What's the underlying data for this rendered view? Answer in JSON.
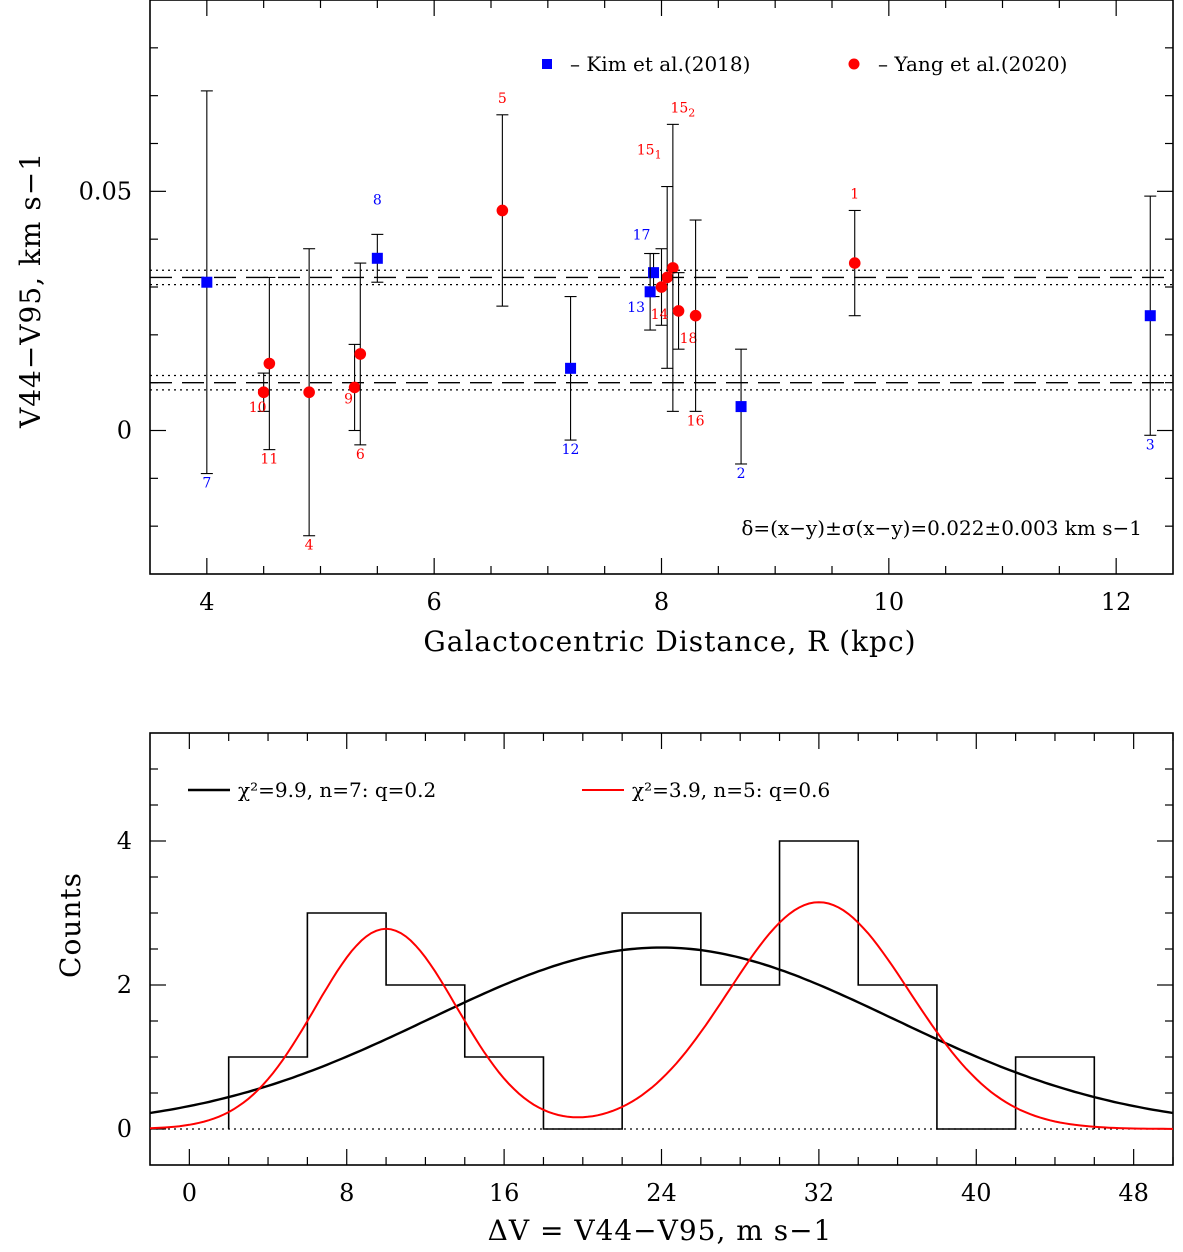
{
  "chart_data": [
    {
      "type": "scatter",
      "ylabel": "V44−V95, km s−1",
      "xlabel": "Galactocentric Distance, R (kpc)",
      "xlim": [
        3.5,
        12.5
      ],
      "ylim": [
        -0.03,
        0.09
      ],
      "xticks": [
        4,
        6,
        8,
        10,
        12
      ],
      "yticks": [
        0,
        0.05
      ],
      "ytick_labels": [
        "0",
        "0.05"
      ],
      "grid": false,
      "legend": "top-right",
      "colors": {
        "kim": "#0000ff",
        "yang": "#ff0000",
        "errorbar": "#000000"
      },
      "series": [
        {
          "name": "– Kim et al.(2018)",
          "marker": "square",
          "points": [
            {
              "label": "7",
              "x": 4.0,
              "y": 0.031,
              "lo": -0.009,
              "hi": 0.071
            },
            {
              "label": "8",
              "x": 5.5,
              "y": 0.036,
              "lo": 0.031,
              "hi": 0.041
            },
            {
              "label": "12",
              "x": 7.2,
              "y": 0.013,
              "lo": -0.002,
              "hi": 0.028
            },
            {
              "label": "17",
              "x": 7.93,
              "y": 0.033,
              "lo": 0.028,
              "hi": 0.037
            },
            {
              "label": "13",
              "x": 7.9,
              "y": 0.029,
              "lo": 0.021,
              "hi": 0.037
            },
            {
              "label": "2",
              "x": 8.7,
              "y": 0.005,
              "lo": -0.007,
              "hi": 0.017
            },
            {
              "label": "3",
              "x": 12.3,
              "y": 0.024,
              "lo": -0.001,
              "hi": 0.049
            }
          ]
        },
        {
          "name": "– Yang et al.(2020)",
          "marker": "circle",
          "points": [
            {
              "label": "10",
              "x": 4.5,
              "y": 0.008,
              "lo": 0.004,
              "hi": 0.012
            },
            {
              "label": "11",
              "x": 4.55,
              "y": 0.014,
              "lo": -0.004,
              "hi": 0.032
            },
            {
              "label": "4",
              "x": 4.9,
              "y": 0.008,
              "lo": -0.022,
              "hi": 0.038
            },
            {
              "label": "9",
              "x": 5.3,
              "y": 0.009,
              "lo": 0.0,
              "hi": 0.018
            },
            {
              "label": "6",
              "x": 5.35,
              "y": 0.016,
              "lo": -0.003,
              "hi": 0.035
            },
            {
              "label": "5",
              "x": 6.6,
              "y": 0.046,
              "lo": 0.026,
              "hi": 0.066
            },
            {
              "label": "151",
              "x": 8.05,
              "y": 0.032,
              "lo": 0.013,
              "hi": 0.051
            },
            {
              "label": "152",
              "x": 8.1,
              "y": 0.034,
              "lo": 0.004,
              "hi": 0.064
            },
            {
              "label": "14",
              "x": 8.0,
              "y": 0.03,
              "lo": 0.022,
              "hi": 0.038
            },
            {
              "label": "18",
              "x": 8.15,
              "y": 0.025,
              "lo": 0.017,
              "hi": 0.033
            },
            {
              "label": "16",
              "x": 8.3,
              "y": 0.024,
              "lo": 0.004,
              "hi": 0.044
            },
            {
              "label": "1",
              "x": 9.7,
              "y": 0.035,
              "lo": 0.024,
              "hi": 0.046
            }
          ]
        }
      ],
      "reference_lines": [
        {
          "y": 0.032,
          "band": [
            0.0305,
            0.0335
          ]
        },
        {
          "y": 0.01,
          "band": [
            0.0085,
            0.0115
          ]
        }
      ],
      "annotation": "δ=(x−y)±σ(x−y)=0.022±0.003 km s−1"
    },
    {
      "type": "histogram",
      "ylabel": "Counts",
      "xlabel": "ΔV = V44−V95, m s−1",
      "xlim": [
        -2,
        50
      ],
      "ylim": [
        -0.5,
        5.5
      ],
      "xticks": [
        0,
        8,
        16,
        24,
        32,
        40,
        48
      ],
      "yticks": [
        0,
        2,
        4
      ],
      "grid": false,
      "legend": "top",
      "bins": [
        {
          "x0": 2,
          "x1": 6,
          "count": 1
        },
        {
          "x0": 6,
          "x1": 10,
          "count": 3
        },
        {
          "x0": 10,
          "x1": 14,
          "count": 2
        },
        {
          "x0": 14,
          "x1": 18,
          "count": 1
        },
        {
          "x0": 18,
          "x1": 22,
          "count": 0
        },
        {
          "x0": 22,
          "x1": 26,
          "count": 3
        },
        {
          "x0": 26,
          "x1": 30,
          "count": 2
        },
        {
          "x0": 30,
          "x1": 34,
          "count": 4
        },
        {
          "x0": 34,
          "x1": 38,
          "count": 2
        },
        {
          "x0": 38,
          "x1": 42,
          "count": 0
        },
        {
          "x0": 42,
          "x1": 46,
          "count": 1
        }
      ],
      "fits": [
        {
          "name": "χ²=9.9, n=7: q=0.2",
          "color": "#000000",
          "components": [
            {
              "amp": 2.52,
              "mu": 24,
              "sigma": 11.8
            }
          ]
        },
        {
          "name": "χ²=3.9, n=5: q=0.6",
          "color": "#ff0000",
          "components": [
            {
              "amp": 2.78,
              "mu": 10,
              "sigma": 3.6
            },
            {
              "amp": 3.15,
              "mu": 32,
              "sigma": 4.6
            }
          ]
        }
      ]
    }
  ]
}
